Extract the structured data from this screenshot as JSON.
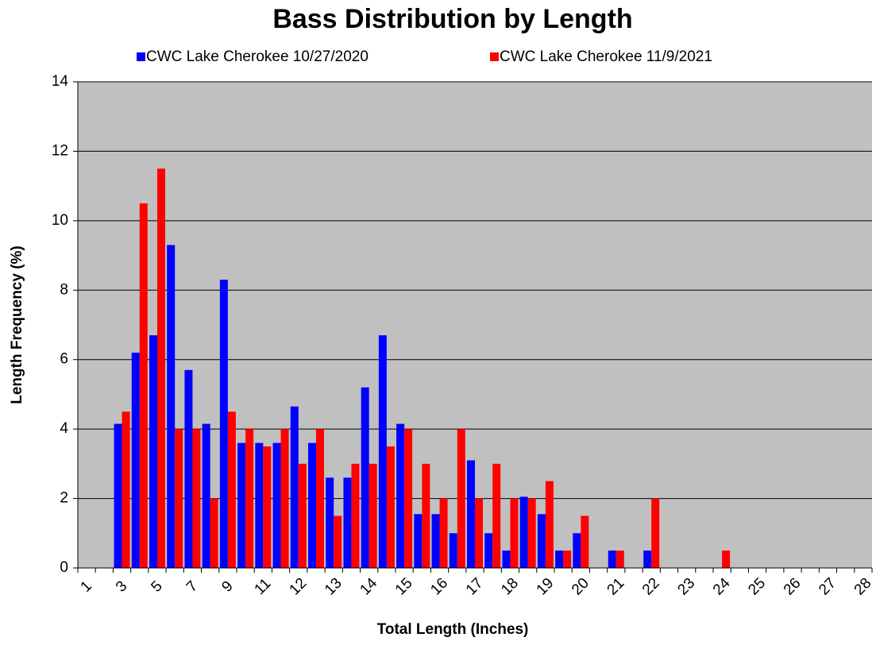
{
  "chart_data": {
    "type": "bar",
    "title": "Bass Distribution by Length",
    "x_label": "Total Length (Inches)",
    "y_label": "Length Frequency (%)",
    "categories": [
      "1",
      null,
      "3",
      null,
      "5",
      null,
      "7",
      null,
      "9",
      null,
      "11",
      null,
      "12",
      null,
      "13",
      null,
      "14",
      null,
      "15",
      null,
      "16",
      null,
      "17",
      null,
      "18",
      null,
      "19",
      null,
      "20",
      null,
      "21",
      null,
      "22",
      null,
      "23",
      null,
      "24",
      null,
      "25",
      null,
      "26",
      null,
      "27",
      null,
      "28"
    ],
    "series": [
      {
        "name": "CWC Lake Cherokee 10/27/2020",
        "color": "#0000ff",
        "values": [
          0,
          0,
          4.15,
          6.2,
          6.7,
          9.3,
          5.7,
          4.15,
          8.3,
          3.6,
          3.6,
          3.6,
          4.65,
          3.6,
          2.6,
          2.6,
          5.2,
          6.7,
          4.15,
          1.55,
          1.55,
          1.0,
          3.1,
          1.0,
          0.5,
          2.05,
          1.55,
          0.5,
          1.0,
          0,
          0.5,
          0,
          0.5,
          0,
          0,
          0,
          0,
          0,
          0,
          0,
          0,
          0,
          0,
          0,
          0
        ]
      },
      {
        "name": "CWC Lake Cherokee 11/9/2021",
        "color": "#ff0000",
        "values": [
          0,
          0,
          4.5,
          10.5,
          11.5,
          4,
          4,
          2,
          4.5,
          4,
          3.5,
          4,
          3,
          4,
          1.5,
          3,
          3,
          3.5,
          4,
          3,
          2,
          4,
          2,
          3,
          2,
          2,
          2.5,
          0.5,
          1.5,
          0,
          0.5,
          0,
          2,
          0,
          0,
          0,
          0.5,
          0,
          0,
          0,
          0,
          0,
          0,
          0,
          0
        ]
      }
    ],
    "ylim": [
      0,
      14
    ],
    "yticks": [
      0,
      2,
      4,
      6,
      8,
      10,
      12,
      14
    ],
    "grid": true,
    "background": "#c0c0c0",
    "legend": "top"
  }
}
